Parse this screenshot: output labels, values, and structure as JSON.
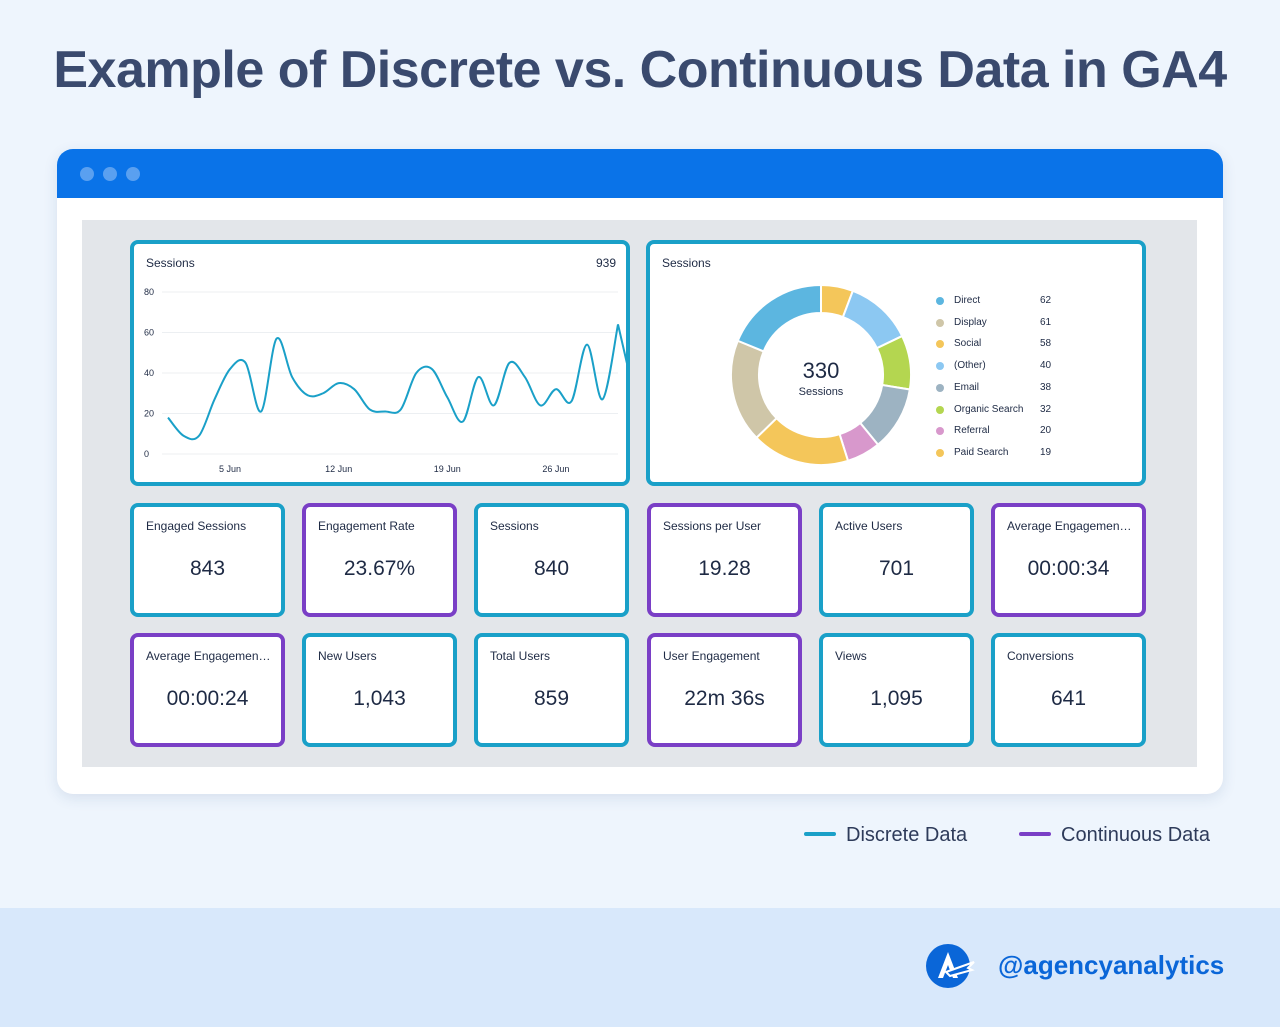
{
  "page_title": "Example of Discrete vs. Continuous Data in GA4",
  "line_chart": {
    "title": "Sessions",
    "total": "939",
    "y_ticks": [
      "80",
      "60",
      "40",
      "20",
      "0"
    ],
    "x_ticks": [
      "5 Jun",
      "12 Jun",
      "19 Jun",
      "26 Jun"
    ]
  },
  "donut": {
    "title": "Sessions",
    "center_value": "330",
    "center_label": "Sessions",
    "segments": [
      {
        "label": "Direct",
        "value": "62",
        "color": "#5cb6e0"
      },
      {
        "label": "Display",
        "value": "61",
        "color": "#cfc6a8"
      },
      {
        "label": "Social",
        "value": "58",
        "color": "#f4c65a"
      },
      {
        "label": "(Other)",
        "value": "40",
        "color": "#8cc8f2"
      },
      {
        "label": "Email",
        "value": "38",
        "color": "#9db3c2"
      },
      {
        "label": "Organic Search",
        "value": "32",
        "color": "#b4d650"
      },
      {
        "label": "Referral",
        "value": "20",
        "color": "#d898cc"
      },
      {
        "label": "Paid Search",
        "value": "19",
        "color": "#f4c65a"
      }
    ]
  },
  "kpis": [
    {
      "title": "Engaged Sessions",
      "value": "843",
      "kind": "discrete"
    },
    {
      "title": "Engagement Rate",
      "value": "23.67%",
      "kind": "continuous"
    },
    {
      "title": "Sessions",
      "value": "840",
      "kind": "discrete"
    },
    {
      "title": "Sessions per User",
      "value": "19.28",
      "kind": "continuous"
    },
    {
      "title": "Active Users",
      "value": "701",
      "kind": "discrete"
    },
    {
      "title": "Average Engagement T...",
      "value": "00:00:34",
      "kind": "continuous"
    },
    {
      "title": "Average Engagement T...",
      "value": "00:00:24",
      "kind": "continuous"
    },
    {
      "title": "New Users",
      "value": "1,043",
      "kind": "discrete"
    },
    {
      "title": "Total Users",
      "value": "859",
      "kind": "discrete"
    },
    {
      "title": "User Engagement",
      "value": "22m 36s",
      "kind": "continuous"
    },
    {
      "title": "Views",
      "value": "1,095",
      "kind": "discrete"
    },
    {
      "title": "Conversions",
      "value": "641",
      "kind": "discrete"
    }
  ],
  "legend": {
    "discrete": "Discrete Data",
    "continuous": "Continuous Data"
  },
  "colors": {
    "discrete": "#1aa0c8",
    "continuous": "#7a3fc6",
    "titlebar": "#0a73e8",
    "line": "#1aa0c8"
  },
  "brand": {
    "handle": "@agencyanalytics"
  },
  "chart_data": [
    {
      "type": "line",
      "title": "Sessions",
      "total": 939,
      "x_tick_labels": [
        "5 Jun",
        "12 Jun",
        "19 Jun",
        "26 Jun"
      ],
      "x_tick_days": [
        5,
        12,
        19,
        26
      ],
      "ylim": [
        0,
        80
      ],
      "y_ticks": [
        0,
        20,
        40,
        60,
        80
      ],
      "series": [
        {
          "name": "Sessions",
          "x": [
            1,
            2,
            3,
            4,
            5,
            6,
            7,
            8,
            9,
            10,
            11,
            12,
            13,
            14,
            15,
            16,
            17,
            18,
            19,
            20,
            21,
            22,
            23,
            24,
            25,
            26,
            27,
            28,
            29,
            30
          ],
          "values": [
            18,
            9,
            9,
            27,
            42,
            45,
            21,
            57,
            38,
            29,
            30,
            35,
            32,
            22,
            21,
            22,
            40,
            42,
            28,
            16,
            38,
            24,
            45,
            38,
            24,
            32,
            26,
            54,
            27,
            64
          ]
        }
      ]
    },
    {
      "type": "pie",
      "title": "Sessions",
      "center_total": 330,
      "labels": [
        "Direct",
        "Display",
        "Social",
        "(Other)",
        "Email",
        "Organic Search",
        "Referral",
        "Paid Search"
      ],
      "values": [
        62,
        61,
        58,
        40,
        38,
        32,
        20,
        19
      ]
    }
  ]
}
